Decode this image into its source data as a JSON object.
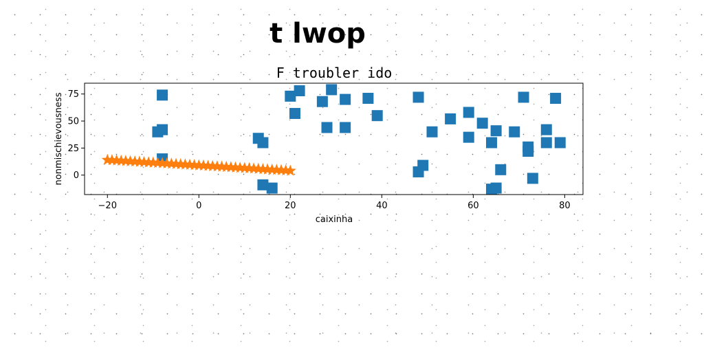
{
  "chart_data": {
    "type": "scatter",
    "suptitle": "t lwop",
    "title": "F troubler ido",
    "xlabel": "caixinha",
    "ylabel": "nonmischievousness",
    "xlim": [
      -25,
      84
    ],
    "ylim": [
      -18,
      85
    ],
    "xticks": [
      -20,
      0,
      20,
      40,
      60,
      80
    ],
    "yticks": [
      0,
      25,
      50,
      75
    ],
    "grid": false,
    "series": [
      {
        "marker": "square",
        "color": "#1f77b4",
        "points": [
          [
            -9,
            40
          ],
          [
            -8,
            42
          ],
          [
            -8,
            74
          ],
          [
            -8,
            15
          ],
          [
            13,
            34
          ],
          [
            14,
            30
          ],
          [
            14,
            -9
          ],
          [
            16,
            -12
          ],
          [
            20,
            73
          ],
          [
            21,
            57
          ],
          [
            22,
            78
          ],
          [
            27,
            68
          ],
          [
            28,
            44
          ],
          [
            29,
            79
          ],
          [
            32,
            70
          ],
          [
            32,
            44
          ],
          [
            37,
            71
          ],
          [
            39,
            55
          ],
          [
            48,
            72
          ],
          [
            48,
            3
          ],
          [
            49,
            9
          ],
          [
            51,
            40
          ],
          [
            55,
            52
          ],
          [
            59,
            58
          ],
          [
            59,
            35
          ],
          [
            62,
            48
          ],
          [
            64,
            30
          ],
          [
            64,
            -13
          ],
          [
            65,
            -12
          ],
          [
            65,
            41
          ],
          [
            66,
            5
          ],
          [
            69,
            40
          ],
          [
            71,
            72
          ],
          [
            72,
            26
          ],
          [
            72,
            22
          ],
          [
            73,
            -3
          ],
          [
            76,
            42
          ],
          [
            76,
            30
          ],
          [
            78,
            71
          ],
          [
            79,
            30
          ]
        ]
      },
      {
        "marker": "star",
        "color": "#ff7f0e",
        "x_start": -20,
        "x_end": 20,
        "y_start": 14,
        "y_end": 4,
        "count": 41
      }
    ]
  }
}
